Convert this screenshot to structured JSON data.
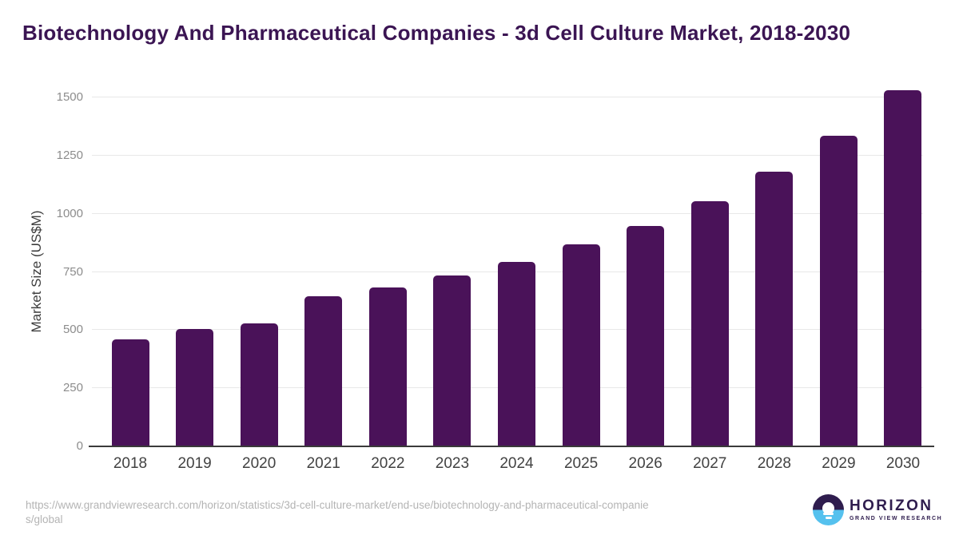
{
  "page": {
    "title": "Biotechnology And Pharmaceutical Companies - 3d Cell Culture Market, 2018-2030"
  },
  "chart_data": {
    "type": "bar",
    "title": "Biotechnology And Pharmaceutical Companies - 3d Cell Culture Market, 2018-2030",
    "categories": [
      "2018",
      "2019",
      "2020",
      "2021",
      "2022",
      "2023",
      "2024",
      "2025",
      "2026",
      "2027",
      "2028",
      "2029",
      "2030"
    ],
    "values": [
      460,
      503,
      530,
      644,
      684,
      735,
      793,
      867,
      948,
      1055,
      1180,
      1336,
      1530
    ],
    "xlabel": "",
    "ylabel": "Market Size (US$M)",
    "ylim": [
      0,
      1500
    ],
    "yticks": [
      0,
      250,
      500,
      750,
      1000,
      1250,
      1500
    ],
    "grid": true,
    "legend": false,
    "bar_color": "#4a1259"
  },
  "footer": {
    "url_lines": [
      "https://www.grandviewresearch.com/horizon/statistics/3d-cell-culture-market/end-use/biotechnology-and-pharmaceutical-companie",
      "s/global"
    ],
    "logo": {
      "title": "HORIZON",
      "subtitle": "GRAND VIEW RESEARCH"
    }
  },
  "colors": {
    "bar": "#4a1259",
    "title": "#3b1553",
    "axis_line": "#3a3a3a",
    "gridline": "#e8e8e8",
    "y_tick": "#8c8c8c",
    "x_tick": "#424242",
    "url": "#b4b4b4",
    "logo_purple": "#2f1d4e",
    "logo_blue": "#55c1ee"
  }
}
